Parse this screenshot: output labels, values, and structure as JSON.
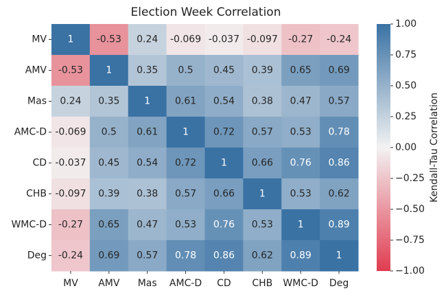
{
  "chart_data": {
    "type": "heatmap",
    "title": "Election Week Correlation",
    "x_categories": [
      "MV",
      "AMV",
      "Mas",
      "AMC-D",
      "CD",
      "CHB",
      "WMC-D",
      "Deg"
    ],
    "y_categories": [
      "MV",
      "AMV",
      "Mas",
      "AMC-D",
      "CD",
      "CHB",
      "WMC-D",
      "Deg"
    ],
    "values": [
      [
        1,
        -0.53,
        0.24,
        -0.069,
        -0.037,
        -0.097,
        -0.27,
        -0.24
      ],
      [
        -0.53,
        1,
        0.35,
        0.5,
        0.45,
        0.39,
        0.65,
        0.69
      ],
      [
        0.24,
        0.35,
        1,
        0.61,
        0.54,
        0.38,
        0.47,
        0.57
      ],
      [
        -0.069,
        0.5,
        0.61,
        1,
        0.72,
        0.57,
        0.53,
        0.78
      ],
      [
        -0.037,
        0.45,
        0.54,
        0.72,
        1,
        0.66,
        0.76,
        0.86
      ],
      [
        -0.097,
        0.39,
        0.38,
        0.57,
        0.66,
        1,
        0.53,
        0.62
      ],
      [
        -0.27,
        0.65,
        0.47,
        0.53,
        0.76,
        0.53,
        1,
        0.89
      ],
      [
        -0.24,
        0.69,
        0.57,
        0.78,
        0.86,
        0.62,
        0.89,
        1
      ]
    ],
    "colormap": [
      "#e03c50",
      "#f2f2f2",
      "#3a72a4"
    ],
    "clim": [
      -1,
      1
    ],
    "colorbar_label": "Kendall-Tau Correlation",
    "colorbar_ticks": [
      {
        "value": 1,
        "label": "1.00"
      },
      {
        "value": 0.75,
        "label": "0.75"
      },
      {
        "value": 0.5,
        "label": "0.50"
      },
      {
        "value": 0.25,
        "label": "0.25"
      },
      {
        "value": 0,
        "label": "0.00"
      },
      {
        "value": -0.25,
        "label": "−0.25"
      },
      {
        "value": -0.5,
        "label": "−0.50"
      },
      {
        "value": -0.75,
        "label": "−0.75"
      },
      {
        "value": -1,
        "label": "−1.00"
      }
    ]
  }
}
